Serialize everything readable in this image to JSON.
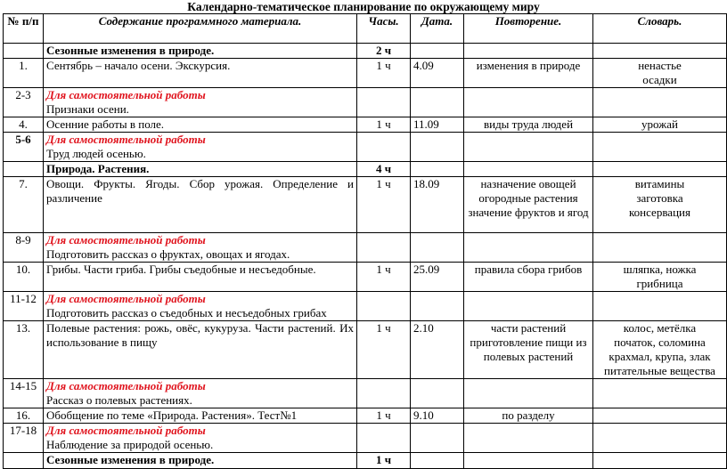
{
  "title": "Календарно-тематическое планирование по окружающему миру",
  "headers": {
    "num": "№ п/п",
    "content": "Содержание программного материала.",
    "hours": "Часы.",
    "date": "Дата.",
    "repeat": "Повторение.",
    "vocab": "Словарь."
  },
  "self_work_label": "Для самостоятельной работы",
  "rows": [
    {
      "type": "section",
      "content": "Сезонные изменения в природе.",
      "hours": "2 ч",
      "h": 16
    },
    {
      "num": "1.",
      "content": "Сентябрь – начало осени. Экскурсия.",
      "hours": "1 ч",
      "date": "4.09",
      "repeat": "изменения в природе",
      "vocab": [
        "ненастье",
        "осадки"
      ],
      "h": 33
    },
    {
      "type": "self",
      "num": "2-3",
      "content": "Признаки осени.",
      "h": 33
    },
    {
      "num": "4.",
      "content": "Осенние работы в поле.",
      "hours": "1 ч",
      "date": "11.09",
      "repeat": "виды труда людей",
      "vocab": [
        "урожай"
      ],
      "h": 16
    },
    {
      "type": "self",
      "num": "5-6",
      "numBold": true,
      "content": "Труд людей осенью.",
      "h": 32
    },
    {
      "type": "section",
      "content": "Природа. Растения.",
      "hours": "4 ч",
      "h": 16
    },
    {
      "num": "7.",
      "content": "Овощи. Фрукты. Ягоды. Сбор урожая. Определение и различение",
      "hours": "1 ч",
      "date": "18.09",
      "repeat": "назначение овощей огородные растения значение фруктов и ягод",
      "vocab": [
        "витамины",
        "заготовка",
        "консервация"
      ],
      "h": 63
    },
    {
      "type": "self",
      "num": "8-9",
      "content": "Подготовить рассказ о фруктах, овощах и ягодах.",
      "h": 30
    },
    {
      "num": "10.",
      "content": "Грибы. Части гриба. Грибы съедобные и несъедобные.",
      "hours": "1 ч",
      "date": "25.09",
      "repeat": "правила сбора грибов",
      "vocab": [
        "шляпка, ножка",
        "грибница"
      ],
      "h": 31
    },
    {
      "type": "self",
      "num": "11-12",
      "content": "Подготовить рассказ о съедобных и несъедобных грибах",
      "h": 32
    },
    {
      "num": "13.",
      "content": "Полевые растения: рожь, овёс, кукуруза. Части растений. Их использование в пищу",
      "hours": "1 ч",
      "date": "2.10",
      "repeat": "части растений приготовление пищи из полевых растений",
      "vocab": [
        "колос, метёлка",
        "початок, соломина",
        "крахмал, крупа, злак",
        "питательные вещества"
      ],
      "h": 63
    },
    {
      "type": "self",
      "num": "14-15",
      "content": "Рассказ о полевых растениях.",
      "h": 32
    },
    {
      "num": "16.",
      "content": "Обобщение по теме «Природа. Растения».      Тест№1",
      "hours": "1 ч",
      "date": "9.10",
      "repeat": "по разделу",
      "vocab": [],
      "h": 16
    },
    {
      "type": "self",
      "num": "17-18",
      "content": "Наблюдение за природой осенью.",
      "h": 32
    },
    {
      "type": "section",
      "content": "Сезонные изменения в природе.",
      "hours": "1 ч",
      "h": 18
    }
  ]
}
